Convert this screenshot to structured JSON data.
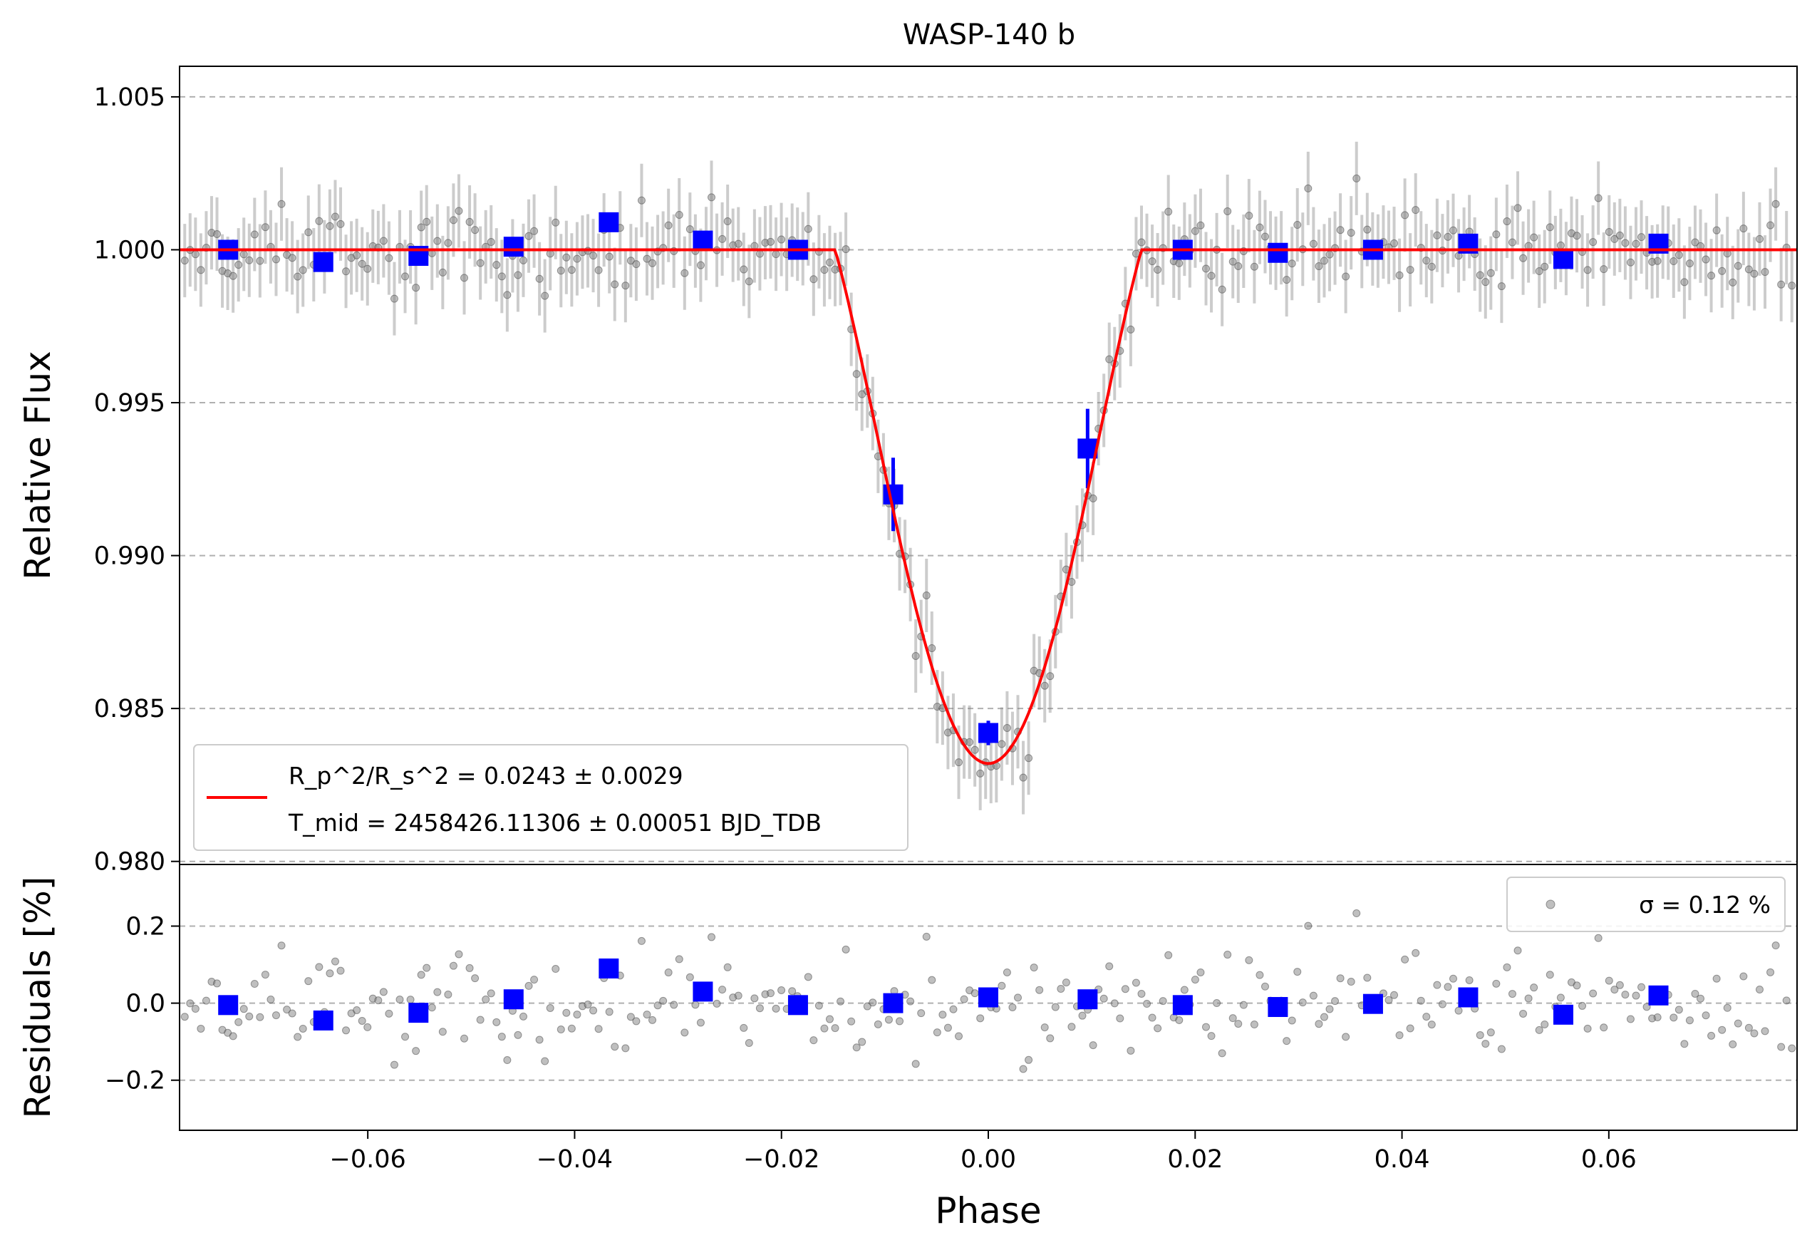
{
  "chart_data": [
    {
      "type": "scatter",
      "panel": "main",
      "title": "WASP-140 b",
      "xlabel": "Phase",
      "ylabel": "Relative Flux",
      "xlim": [
        -0.0782,
        0.0782
      ],
      "ylim": [
        0.9799,
        1.006
      ],
      "grid": "y-dashed",
      "yticks": [
        0.98,
        0.985,
        0.99,
        0.995,
        1.0,
        1.005
      ],
      "ytick_labels": [
        "0.980",
        "0.985",
        "0.990",
        "0.995",
        "1.000",
        "1.005"
      ],
      "legend": {
        "position": "lower-left",
        "line1": "R_p^2/R_s^2 = 0.0243 ± 0.0029",
        "line2": "T_mid = 2458426.11306 ± 0.00051 BJD_TDB"
      },
      "model_color": "#ff0000",
      "raw_color": "#808080",
      "binned_color": "#0000ff",
      "binned_series": {
        "name": "binned",
        "x": [
          -0.0735,
          -0.0643,
          -0.0551,
          -0.0459,
          -0.0367,
          -0.0276,
          -0.0184,
          -0.0092,
          0.0,
          0.0096,
          0.0188,
          0.028,
          0.0372,
          0.0464,
          0.0556,
          0.0648
        ],
        "y": [
          1.0,
          0.9996,
          0.9998,
          1.0001,
          1.0009,
          1.0003,
          1.0,
          0.992,
          0.9842,
          0.9935,
          1.0,
          0.9999,
          1.0,
          1.0002,
          0.9997,
          1.0002
        ],
        "yerr": [
          0.0002,
          0.0002,
          0.0002,
          0.0002,
          0.0002,
          0.0002,
          0.0002,
          0.0012,
          0.0004,
          0.0013,
          0.0002,
          0.0002,
          0.0002,
          0.0002,
          0.0002,
          0.0002
        ]
      },
      "transit_model": {
        "rp_rs2": 0.0243,
        "depth": 0.0168,
        "t_total": 0.0296,
        "t_flat": 0.0
      },
      "raw_series": {
        "name": "raw",
        "n": 300,
        "noise_sigma": 0.0012,
        "yerr": 0.0012
      }
    },
    {
      "type": "scatter",
      "panel": "residuals",
      "xlabel": "Phase",
      "ylabel": "Residuals [%]",
      "xlim": [
        -0.0782,
        0.0782
      ],
      "ylim": [
        -0.33,
        0.36
      ],
      "grid": "y-dashed",
      "xticks": [
        -0.06,
        -0.04,
        -0.02,
        0.0,
        0.02,
        0.04,
        0.06
      ],
      "xtick_labels": [
        "−0.06",
        "−0.04",
        "−0.02",
        "0.00",
        "0.02",
        "0.04",
        "0.06"
      ],
      "yticks": [
        -0.2,
        0.0,
        0.2
      ],
      "ytick_labels": [
        "−0.2",
        "0.0",
        "0.2"
      ],
      "legend": {
        "position": "top-right",
        "label": "σ = 0.12 %"
      },
      "binned_series": {
        "name": "binned residuals",
        "x": [
          -0.0735,
          -0.0643,
          -0.0551,
          -0.0459,
          -0.0367,
          -0.0276,
          -0.0184,
          -0.0092,
          0.0,
          0.0096,
          0.0188,
          0.028,
          0.0372,
          0.0464,
          0.0556,
          0.0648
        ],
        "y": [
          -0.005,
          -0.045,
          -0.025,
          0.01,
          0.09,
          0.03,
          -0.005,
          0.0,
          0.015,
          0.01,
          -0.005,
          -0.01,
          -0.002,
          0.015,
          -0.03,
          0.02
        ]
      }
    }
  ]
}
